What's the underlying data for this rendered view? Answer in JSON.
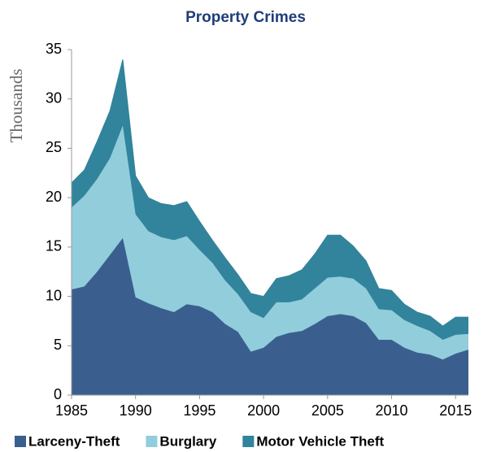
{
  "chart_data": {
    "type": "area",
    "stacked": true,
    "title": "Property Crimes",
    "y_label": "Thousands",
    "x": [
      1985,
      1986,
      1987,
      1988,
      1989,
      1990,
      1991,
      1992,
      1993,
      1994,
      1995,
      1996,
      1997,
      1998,
      1999,
      2000,
      2001,
      2002,
      2003,
      2004,
      2005,
      2006,
      2007,
      2008,
      2009,
      2010,
      2011,
      2012,
      2013,
      2014,
      2015,
      2016
    ],
    "series": [
      {
        "name": "Larceny-Theft",
        "color": "#3a5f8f",
        "values": [
          10.7,
          11.0,
          12.5,
          14.2,
          15.9,
          9.9,
          9.3,
          8.8,
          8.4,
          9.2,
          9.0,
          8.4,
          7.2,
          6.4,
          4.4,
          4.8,
          5.9,
          6.3,
          6.5,
          7.2,
          8.0,
          8.2,
          8.0,
          7.3,
          5.6,
          5.6,
          4.8,
          4.3,
          4.1,
          3.6,
          4.2,
          4.6
        ]
      },
      {
        "name": "Burglary",
        "color": "#92cddc",
        "values": [
          8.3,
          9.2,
          9.4,
          9.8,
          11.4,
          8.4,
          7.3,
          7.2,
          7.3,
          6.9,
          5.7,
          5.0,
          4.4,
          3.8,
          4.0,
          3.0,
          3.5,
          3.1,
          3.2,
          3.6,
          3.9,
          3.8,
          3.8,
          3.5,
          3.1,
          3.0,
          2.8,
          2.7,
          2.4,
          2.0,
          1.9,
          1.6
        ]
      },
      {
        "name": "Motor Vehicle Theft",
        "color": "#31849b",
        "values": [
          2.5,
          2.6,
          3.8,
          4.8,
          6.7,
          3.9,
          3.4,
          3.4,
          3.5,
          3.5,
          2.9,
          2.3,
          2.3,
          2.0,
          1.9,
          2.2,
          2.4,
          2.7,
          3.0,
          3.5,
          4.3,
          4.2,
          3.3,
          2.8,
          2.1,
          2.0,
          1.6,
          1.4,
          1.5,
          1.4,
          1.8,
          1.7
        ]
      }
    ],
    "xlim": [
      1985,
      2016
    ],
    "xticks": [
      1985,
      1990,
      1995,
      2000,
      2005,
      2010,
      2015
    ],
    "ylim": [
      0,
      35
    ],
    "yticks": [
      0,
      5,
      10,
      15,
      20,
      25,
      30,
      35
    ],
    "grid": false,
    "legend": "bottom"
  }
}
